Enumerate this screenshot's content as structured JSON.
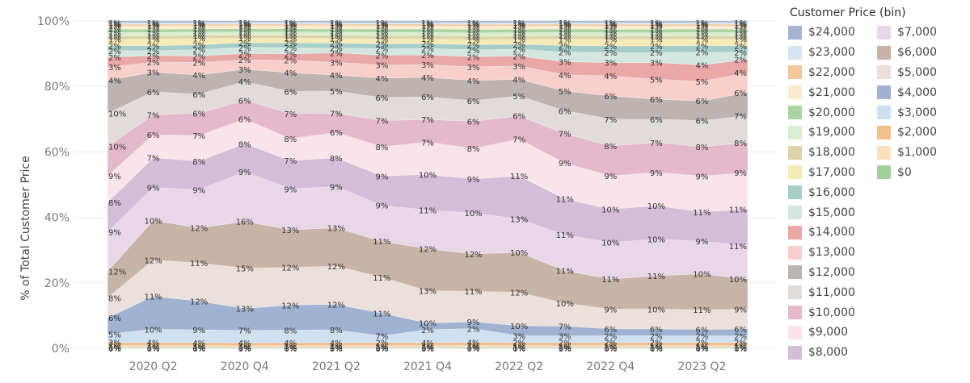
{
  "y_axis_label": "% of Total Customer Price",
  "legend_title": "Customer Price (bin)",
  "chart_data": {
    "type": "area",
    "stacked": "percent",
    "title": "",
    "xlabel": "",
    "ylabel": "% of Total Customer Price",
    "ylim": [
      0,
      100
    ],
    "yticks": [
      "0%",
      "20%",
      "40%",
      "60%",
      "80%",
      "100%"
    ],
    "x": [
      "2020 Q1",
      "2020 Q2",
      "2020 Q3",
      "2020 Q4",
      "2021 Q1",
      "2021 Q2",
      "2021 Q3",
      "2021 Q4",
      "2022 Q1",
      "2022 Q2",
      "2022 Q3",
      "2022 Q4",
      "2023 Q1",
      "2023 Q2",
      "2023 Q3"
    ],
    "x_tick_labels": [
      "2020 Q2",
      "2020 Q4",
      "2021 Q2",
      "2021 Q4",
      "2022 Q2",
      "2022 Q4",
      "2023 Q2"
    ],
    "x_tick_index": [
      1,
      3,
      5,
      7,
      9,
      11,
      13
    ],
    "legend_position": "right",
    "series": [
      {
        "name": "$0",
        "color": "#a3cf9b",
        "values": [
          0.3,
          0.3,
          0.3,
          0.3,
          0.3,
          0.3,
          0.3,
          0.3,
          0.3,
          0.3,
          0.3,
          0.3,
          0.3,
          0.3,
          0.3
        ]
      },
      {
        "name": "$1,000",
        "color": "#fbe0be",
        "values": [
          0.5,
          0.5,
          0.5,
          0.5,
          0.5,
          0.5,
          0.5,
          0.5,
          0.5,
          0.5,
          0.5,
          0.5,
          0.5,
          0.5,
          0.5
        ]
      },
      {
        "name": "$2,000",
        "color": "#f2c08e",
        "values": [
          1,
          1,
          1,
          1,
          1,
          1,
          1,
          1,
          1,
          1,
          1,
          1,
          1,
          1,
          1
        ]
      },
      {
        "name": "$3,000",
        "color": "#cfe0f1",
        "values": [
          2.5,
          4,
          4,
          4,
          4,
          4,
          2,
          4,
          4,
          2,
          2,
          2,
          2,
          2,
          2
        ]
      },
      {
        "name": "$4,000",
        "color": "#9fb2d2",
        "values": [
          5,
          10,
          9,
          7,
          8,
          8,
          7,
          2,
          2,
          3,
          3,
          2,
          2,
          2,
          2
        ]
      },
      {
        "name": "$5,000",
        "color": "#ece0dc",
        "values": [
          6,
          11,
          12,
          13,
          12,
          12,
          11,
          10,
          9,
          10,
          7,
          6,
          6,
          6,
          6
        ]
      },
      {
        "name": "$6,000",
        "color": "#c7b4a6",
        "values": [
          8,
          12,
          11,
          15,
          12,
          12,
          11,
          13,
          11,
          12,
          10,
          9,
          10,
          11,
          9
        ]
      },
      {
        "name": "$7,000",
        "color": "#e8d7e9",
        "values": [
          12,
          10,
          12,
          16,
          13,
          13,
          11,
          12,
          12,
          10,
          11,
          11,
          11,
          10,
          10
        ]
      },
      {
        "name": "$8,000",
        "color": "#d4bdd8",
        "values": [
          9,
          9,
          9,
          9,
          9,
          9,
          9,
          11,
          10,
          13,
          11,
          10,
          10,
          9,
          11
        ]
      },
      {
        "name": "$9,000",
        "color": "#fae3ea",
        "values": [
          8,
          7,
          8,
          8,
          7,
          8,
          9,
          10,
          9,
          11,
          11,
          10,
          10,
          11,
          11
        ]
      },
      {
        "name": "$10,000",
        "color": "#e5b9cc",
        "values": [
          9,
          6,
          7,
          6,
          8,
          6,
          8,
          7,
          8,
          7,
          9,
          9,
          9,
          9,
          9
        ]
      },
      {
        "name": "$11,000",
        "color": "#e1dcda",
        "values": [
          10,
          7,
          6,
          6,
          7,
          7,
          7,
          7,
          6,
          6,
          7,
          8,
          7,
          8,
          8
        ]
      },
      {
        "name": "$12,000",
        "color": "#bdb3b1",
        "values": [
          10,
          6,
          6,
          4,
          6,
          5,
          6,
          6,
          6,
          5,
          6,
          7,
          6,
          6,
          7
        ]
      },
      {
        "name": "$13,000",
        "color": "#f8cfcb",
        "values": [
          4,
          3,
          4,
          3,
          4,
          4,
          4,
          4,
          4,
          4,
          5,
          6,
          6,
          6,
          6
        ]
      },
      {
        "name": "$14,000",
        "color": "#e9a7a6",
        "values": [
          3,
          2,
          2,
          2,
          2,
          3,
          3,
          3,
          3,
          3,
          4,
          4,
          5,
          5,
          4
        ]
      },
      {
        "name": "$15,000",
        "color": "#d3e6e0",
        "values": [
          2,
          1.5,
          2,
          2,
          2,
          1.5,
          2,
          2,
          2,
          2,
          3,
          3,
          3,
          4,
          2
        ]
      },
      {
        "name": "$16,000",
        "color": "#a6cdc7",
        "values": [
          1.5,
          1.5,
          1.5,
          1.5,
          1.5,
          1.5,
          1.5,
          1.5,
          1.5,
          1.5,
          2,
          2,
          2,
          2,
          2
        ]
      },
      {
        "name": "$17,000",
        "color": "#f6eab7",
        "values": [
          2,
          2,
          2,
          1.5,
          1.5,
          1.5,
          1.5,
          1.5,
          1.5,
          1.5,
          2,
          2,
          2,
          2,
          2
        ]
      },
      {
        "name": "$18,000",
        "color": "#dcd3a8",
        "values": [
          1,
          1,
          1,
          1,
          1,
          1,
          1,
          1,
          1,
          1,
          1,
          1,
          1,
          1,
          1
        ]
      },
      {
        "name": "$19,000",
        "color": "#d8f0cf",
        "values": [
          1,
          1,
          1,
          1,
          1,
          1,
          1,
          1,
          1,
          1,
          1,
          1,
          1,
          1,
          1
        ]
      },
      {
        "name": "$20,000",
        "color": "#a9d3a0",
        "values": [
          1,
          1,
          1,
          1,
          1,
          1,
          1,
          1,
          1,
          1,
          1,
          1,
          1,
          1,
          1
        ]
      },
      {
        "name": "$21,000",
        "color": "#fcebcf",
        "values": [
          1,
          1,
          1,
          1,
          1,
          1,
          1,
          1,
          1,
          1,
          1,
          1,
          1,
          1,
          1
        ]
      },
      {
        "name": "$22,000",
        "color": "#f2c79a",
        "values": [
          0.5,
          0.5,
          0.5,
          0.5,
          0.5,
          0.5,
          0.5,
          0.5,
          0.5,
          0.5,
          0.5,
          0.5,
          0.5,
          0.5,
          0.5
        ]
      },
      {
        "name": "$23,000",
        "color": "#d5e4f3",
        "values": [
          0.5,
          0.5,
          0.5,
          0.5,
          0.5,
          0.5,
          0.5,
          0.5,
          0.5,
          0.5,
          0.5,
          0.5,
          0.5,
          0.5,
          0.5
        ]
      },
      {
        "name": "$24,000",
        "color": "#a5b4d3",
        "values": [
          0.5,
          0.5,
          0.5,
          0.5,
          0.5,
          0.5,
          0.5,
          0.5,
          0.5,
          0.5,
          0.5,
          0.5,
          0.5,
          0.5,
          0.5
        ]
      }
    ]
  },
  "legend": {
    "col1": [
      "$24,000",
      "$23,000",
      "$22,000",
      "$21,000",
      "$20,000",
      "$19,000",
      "$18,000",
      "$17,000",
      "$16,000",
      "$15,000",
      "$14,000",
      "$13,000",
      "$12,000",
      "$11,000",
      "$10,000",
      "$9,000",
      "$8,000"
    ],
    "col2": [
      "$7,000",
      "$6,000",
      "$5,000",
      "$4,000",
      "$3,000",
      "$2,000",
      "$1,000",
      "$0"
    ]
  }
}
